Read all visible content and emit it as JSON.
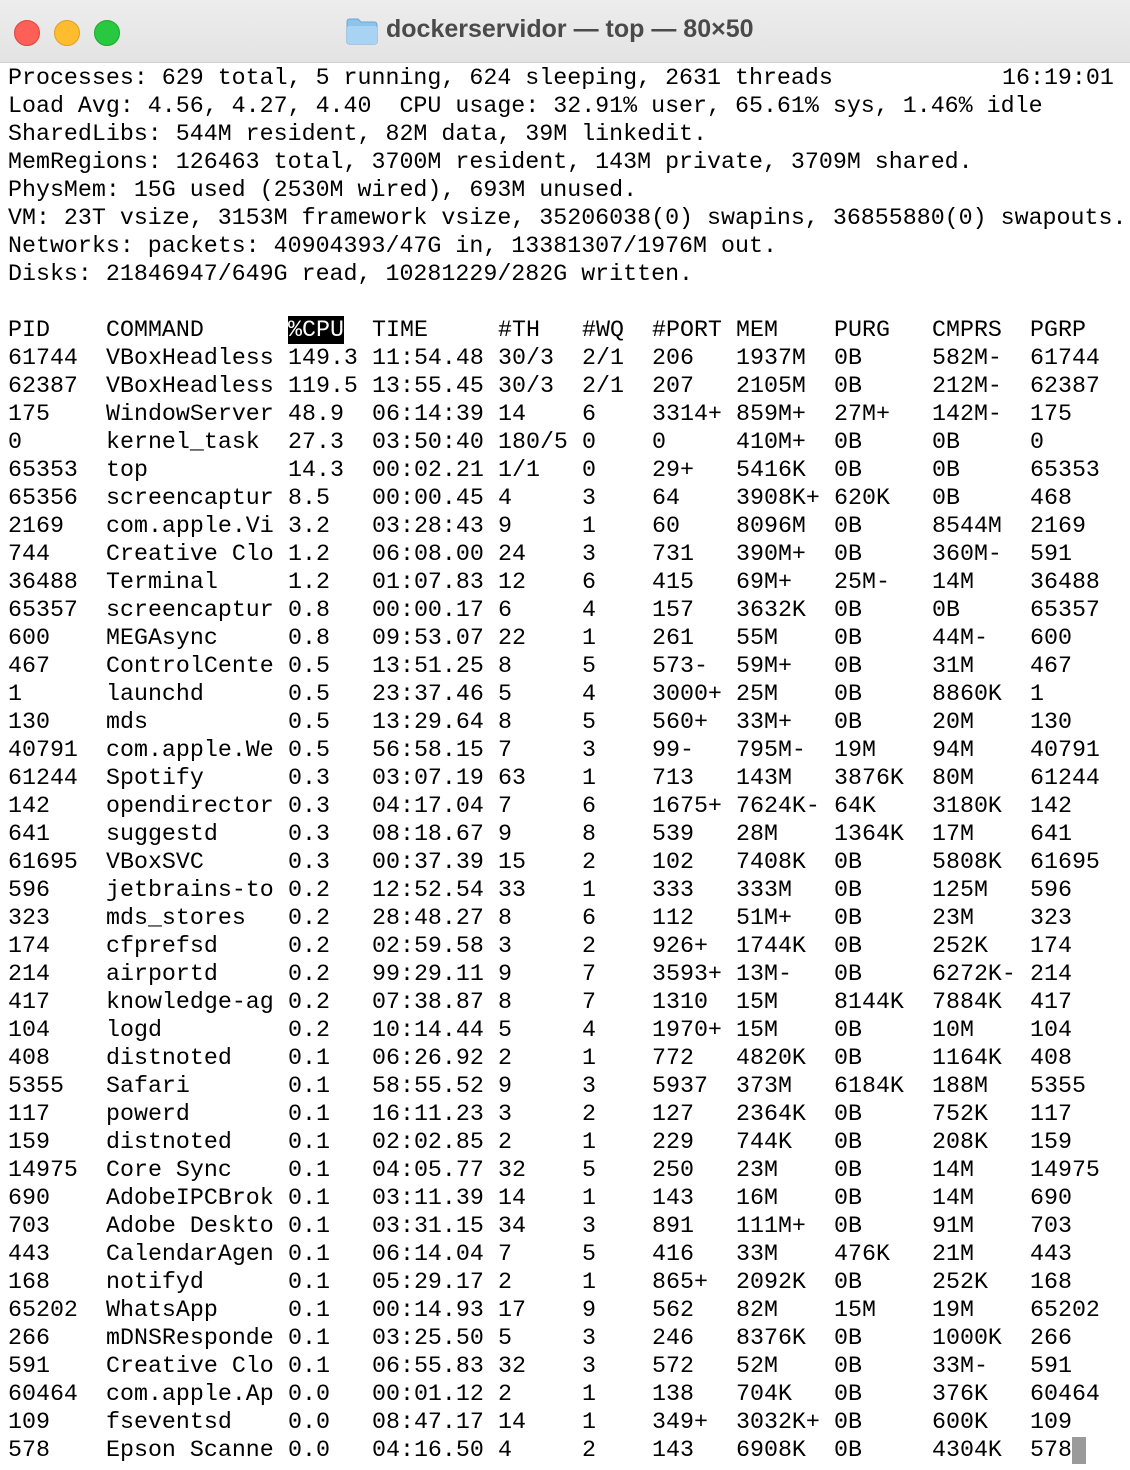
{
  "window": {
    "title": "dockerservidor — top — 80×50"
  },
  "summary": {
    "clock": "16:19:01",
    "lines": [
      "Processes: 629 total, 5 running, 624 sleeping, 2631 threads",
      "Load Avg: 4.56, 4.27, 4.40  CPU usage: 32.91% user, 65.61% sys, 1.46% idle",
      "SharedLibs: 544M resident, 82M data, 39M linkedit.",
      "MemRegions: 126463 total, 3700M resident, 143M private, 3709M shared.",
      "PhysMem: 15G used (2530M wired), 693M unused.",
      "VM: 23T vsize, 3153M framework vsize, 35206038(0) swapins, 36855880(0) swapouts.",
      "Networks: packets: 40904393/47G in, 13381307/1976M out.",
      "Disks: 21846947/649G read, 10281229/282G written."
    ]
  },
  "table": {
    "columns": [
      "PID",
      "COMMAND",
      "%CPU",
      "TIME",
      "#TH",
      "#WQ",
      "#PORT",
      "MEM",
      "PURG",
      "CMPRS",
      "PGRP"
    ],
    "rows": [
      [
        "61744",
        "VBoxHeadless",
        "149.3",
        "11:54.48",
        "30/3",
        "2/1",
        "206",
        "1937M",
        "0B",
        "582M-",
        "61744"
      ],
      [
        "62387",
        "VBoxHeadless",
        "119.5",
        "13:55.45",
        "30/3",
        "2/1",
        "207",
        "2105M",
        "0B",
        "212M-",
        "62387"
      ],
      [
        "175",
        "WindowServer",
        "48.9",
        "06:14:39",
        "14",
        "6",
        "3314+",
        "859M+",
        "27M+",
        "142M-",
        "175"
      ],
      [
        "0",
        "kernel_task",
        "27.3",
        "03:50:40",
        "180/5",
        "0",
        "0",
        "410M+",
        "0B",
        "0B",
        "0"
      ],
      [
        "65353",
        "top",
        "14.3",
        "00:02.21",
        "1/1",
        "0",
        "29+",
        "5416K",
        "0B",
        "0B",
        "65353"
      ],
      [
        "65356",
        "screencaptur",
        "8.5",
        "00:00.45",
        "4",
        "3",
        "64",
        "3908K+",
        "620K",
        "0B",
        "468"
      ],
      [
        "2169",
        "com.apple.Vi",
        "3.2",
        "03:28:43",
        "9",
        "1",
        "60",
        "8096M",
        "0B",
        "8544M",
        "2169"
      ],
      [
        "744",
        "Creative Clo",
        "1.2",
        "06:08.00",
        "24",
        "3",
        "731",
        "390M+",
        "0B",
        "360M-",
        "591"
      ],
      [
        "36488",
        "Terminal",
        "1.2",
        "01:07.83",
        "12",
        "6",
        "415",
        "69M+",
        "25M-",
        "14M",
        "36488"
      ],
      [
        "65357",
        "screencaptur",
        "0.8",
        "00:00.17",
        "6",
        "4",
        "157",
        "3632K",
        "0B",
        "0B",
        "65357"
      ],
      [
        "600",
        "MEGAsync",
        "0.8",
        "09:53.07",
        "22",
        "1",
        "261",
        "55M",
        "0B",
        "44M-",
        "600"
      ],
      [
        "467",
        "ControlCente",
        "0.5",
        "13:51.25",
        "8",
        "5",
        "573-",
        "59M+",
        "0B",
        "31M",
        "467"
      ],
      [
        "1",
        "launchd",
        "0.5",
        "23:37.46",
        "5",
        "4",
        "3000+",
        "25M",
        "0B",
        "8860K",
        "1"
      ],
      [
        "130",
        "mds",
        "0.5",
        "13:29.64",
        "8",
        "5",
        "560+",
        "33M+",
        "0B",
        "20M",
        "130"
      ],
      [
        "40791",
        "com.apple.We",
        "0.5",
        "56:58.15",
        "7",
        "3",
        "99-",
        "795M-",
        "19M",
        "94M",
        "40791"
      ],
      [
        "61244",
        "Spotify",
        "0.3",
        "03:07.19",
        "63",
        "1",
        "713",
        "143M",
        "3876K",
        "80M",
        "61244"
      ],
      [
        "142",
        "opendirector",
        "0.3",
        "04:17.04",
        "7",
        "6",
        "1675+",
        "7624K-",
        "64K",
        "3180K",
        "142"
      ],
      [
        "641",
        "suggestd",
        "0.3",
        "08:18.67",
        "9",
        "8",
        "539",
        "28M",
        "1364K",
        "17M",
        "641"
      ],
      [
        "61695",
        "VBoxSVC",
        "0.3",
        "00:37.39",
        "15",
        "2",
        "102",
        "7408K",
        "0B",
        "5808K",
        "61695"
      ],
      [
        "596",
        "jetbrains-to",
        "0.2",
        "12:52.54",
        "33",
        "1",
        "333",
        "333M",
        "0B",
        "125M",
        "596"
      ],
      [
        "323",
        "mds_stores",
        "0.2",
        "28:48.27",
        "8",
        "6",
        "112",
        "51M+",
        "0B",
        "23M",
        "323"
      ],
      [
        "174",
        "cfprefsd",
        "0.2",
        "02:59.58",
        "3",
        "2",
        "926+",
        "1744K",
        "0B",
        "252K",
        "174"
      ],
      [
        "214",
        "airportd",
        "0.2",
        "99:29.11",
        "9",
        "7",
        "3593+",
        "13M-",
        "0B",
        "6272K-",
        "214"
      ],
      [
        "417",
        "knowledge-ag",
        "0.2",
        "07:38.87",
        "8",
        "7",
        "1310",
        "15M",
        "8144K",
        "7884K",
        "417"
      ],
      [
        "104",
        "logd",
        "0.2",
        "10:14.44",
        "5",
        "4",
        "1970+",
        "15M",
        "0B",
        "10M",
        "104"
      ],
      [
        "408",
        "distnoted",
        "0.1",
        "06:26.92",
        "2",
        "1",
        "772",
        "4820K",
        "0B",
        "1164K",
        "408"
      ],
      [
        "5355",
        "Safari",
        "0.1",
        "58:55.52",
        "9",
        "3",
        "5937",
        "373M",
        "6184K",
        "188M",
        "5355"
      ],
      [
        "117",
        "powerd",
        "0.1",
        "16:11.23",
        "3",
        "2",
        "127",
        "2364K",
        "0B",
        "752K",
        "117"
      ],
      [
        "159",
        "distnoted",
        "0.1",
        "02:02.85",
        "2",
        "1",
        "229",
        "744K",
        "0B",
        "208K",
        "159"
      ],
      [
        "14975",
        "Core Sync",
        "0.1",
        "04:05.77",
        "32",
        "5",
        "250",
        "23M",
        "0B",
        "14M",
        "14975"
      ],
      [
        "690",
        "AdobeIPCBrok",
        "0.1",
        "03:11.39",
        "14",
        "1",
        "143",
        "16M",
        "0B",
        "14M",
        "690"
      ],
      [
        "703",
        "Adobe Deskto",
        "0.1",
        "03:31.15",
        "34",
        "3",
        "891",
        "111M+",
        "0B",
        "91M",
        "703"
      ],
      [
        "443",
        "CalendarAgen",
        "0.1",
        "06:14.04",
        "7",
        "5",
        "416",
        "33M",
        "476K",
        "21M",
        "443"
      ],
      [
        "168",
        "notifyd",
        "0.1",
        "05:29.17",
        "2",
        "1",
        "865+",
        "2092K",
        "0B",
        "252K",
        "168"
      ],
      [
        "65202",
        "WhatsApp",
        "0.1",
        "00:14.93",
        "17",
        "9",
        "562",
        "82M",
        "15M",
        "19M",
        "65202"
      ],
      [
        "266",
        "mDNSResponde",
        "0.1",
        "03:25.50",
        "5",
        "3",
        "246",
        "8376K",
        "0B",
        "1000K",
        "266"
      ],
      [
        "591",
        "Creative Clo",
        "0.1",
        "06:55.83",
        "32",
        "3",
        "572",
        "52M",
        "0B",
        "33M-",
        "591"
      ],
      [
        "60464",
        "com.apple.Ap",
        "0.0",
        "00:01.12",
        "2",
        "1",
        "138",
        "704K",
        "0B",
        "376K",
        "60464"
      ],
      [
        "109",
        "fseventsd",
        "0.0",
        "08:47.17",
        "14",
        "1",
        "349+",
        "3032K+",
        "0B",
        "600K",
        "109"
      ],
      [
        "578",
        "Epson Scanne",
        "0.0",
        "04:16.50",
        "4",
        "2",
        "143",
        "6908K",
        "0B",
        "4304K",
        "578"
      ]
    ]
  }
}
